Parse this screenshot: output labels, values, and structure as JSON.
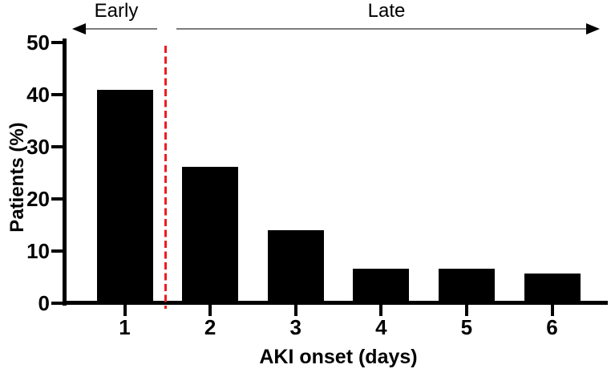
{
  "chart_data": {
    "type": "bar",
    "categories": [
      "1",
      "2",
      "3",
      "4",
      "5",
      "6"
    ],
    "values": [
      40.9,
      26.1,
      13.9,
      6.5,
      6.5,
      5.6
    ],
    "title": "",
    "xlabel": "AKI onset (days)",
    "ylabel": "Patients (%)",
    "ylim": [
      0,
      50
    ],
    "yticks": [
      0,
      10,
      20,
      30,
      40,
      50
    ],
    "bar_color": "#000000",
    "grid": "off",
    "divider": {
      "x": 1.5,
      "style": "dashed",
      "color": "#ee1b22"
    },
    "annotations": [
      {
        "text": "Early",
        "region": "days < 1.5",
        "arrow_direction": "left"
      },
      {
        "text": "Late",
        "region": "days > 1.5",
        "arrow_direction": "right"
      }
    ]
  }
}
